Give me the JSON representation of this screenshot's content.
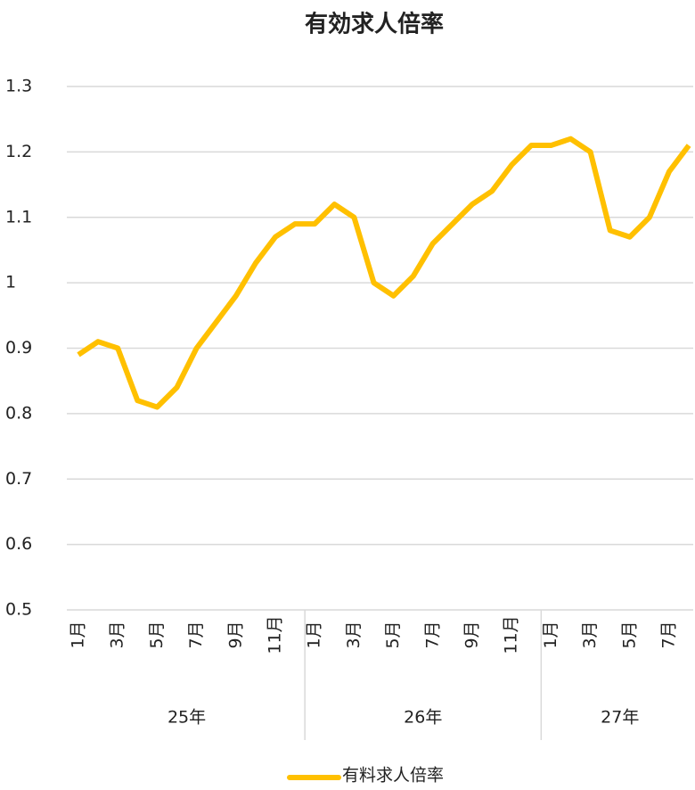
{
  "chart_data": {
    "type": "line",
    "title": "有効求人倍率",
    "categories": [
      "1月",
      null,
      "3月",
      null,
      "5月",
      null,
      "7月",
      null,
      "9月",
      null,
      "11月",
      null,
      "1月",
      null,
      "3月",
      null,
      "5月",
      null,
      "7月",
      null,
      "9月",
      null,
      "11月",
      null,
      "1月",
      null,
      "3月",
      null,
      "5月",
      null,
      "7月",
      null
    ],
    "groups": [
      "25年",
      "26年",
      "27年"
    ],
    "series": [
      {
        "name": "有料求人倍率",
        "color": "#ffc000",
        "values": [
          0.89,
          0.91,
          0.9,
          0.82,
          0.81,
          0.84,
          0.9,
          0.94,
          0.98,
          1.03,
          1.07,
          1.09,
          1.09,
          1.12,
          1.1,
          1.0,
          0.98,
          1.01,
          1.06,
          1.09,
          1.12,
          1.14,
          1.18,
          1.21,
          1.21,
          1.22,
          1.2,
          1.08,
          1.07,
          1.1,
          1.17,
          1.21
        ]
      }
    ],
    "ylim": [
      0.5,
      1.3
    ],
    "yticks": [
      0.5,
      0.6,
      0.7,
      0.8,
      0.9,
      1,
      1.1,
      1.2,
      1.3
    ],
    "grid": true,
    "legend": "bottom"
  }
}
